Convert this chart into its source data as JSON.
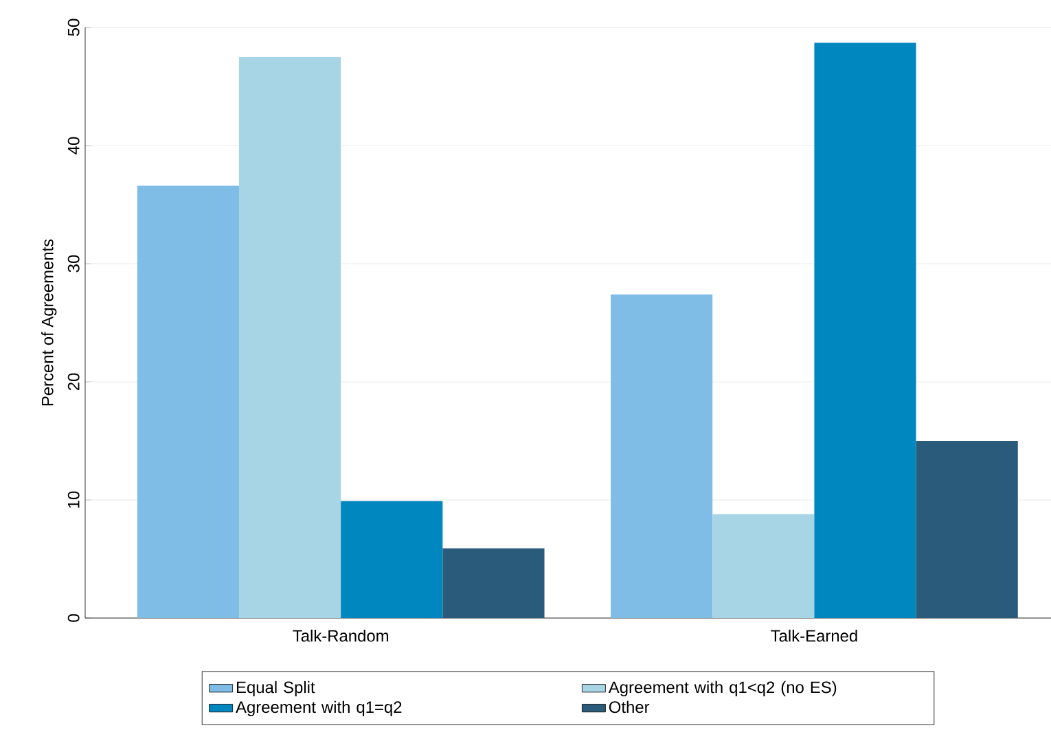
{
  "chart_data": {
    "type": "bar",
    "ylabel": "Percent of Agreements",
    "categories": [
      "Talk-Random",
      "Talk-Earned"
    ],
    "series": [
      {
        "name": "Equal Split",
        "color": "#7fbde7",
        "values": [
          36.6,
          27.4
        ]
      },
      {
        "name": "Agreement with q1<q2 (no ES)",
        "color": "#a8d5e5",
        "values": [
          47.5,
          8.8
        ]
      },
      {
        "name": "Agreement with q1=q2",
        "color": "#0087bf",
        "values": [
          9.9,
          48.7
        ]
      },
      {
        "name": "Other",
        "color": "#2a5b7a",
        "values": [
          5.9,
          15.0
        ]
      }
    ],
    "ylim": [
      0,
      50
    ],
    "yticks": [
      0,
      10,
      20,
      30,
      40,
      50
    ],
    "grid": "y",
    "legend": "bottom"
  }
}
